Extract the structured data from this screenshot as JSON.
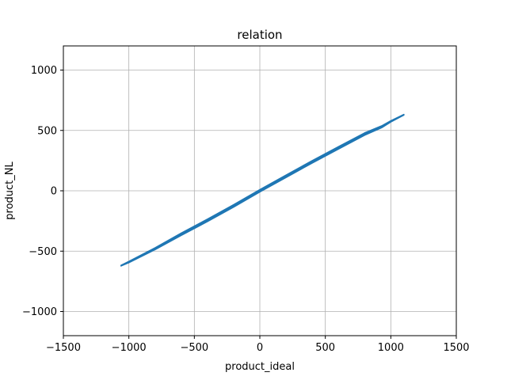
{
  "chart_data": {
    "type": "line",
    "title": "relation",
    "xlabel": "product_ideal",
    "ylabel": "product_NL",
    "xlim": [
      -1500,
      1500
    ],
    "ylim": [
      -1200,
      1200
    ],
    "xticks": [
      -1500,
      -1000,
      -500,
      0,
      500,
      1000,
      1500
    ],
    "yticks": [
      -1000,
      -500,
      0,
      500,
      1000
    ],
    "xtick_labels": [
      "−1500",
      "−1000",
      "−500",
      "0",
      "500",
      "1000",
      "1500"
    ],
    "ytick_labels": [
      "−1000",
      "−500",
      "0",
      "500",
      "1000"
    ],
    "grid": true,
    "series": [
      {
        "color": "#1f77b4",
        "band_halfwidth_y": 10,
        "x": [
          -1060,
          -1000,
          -800,
          -600,
          -400,
          -200,
          0,
          200,
          400,
          600,
          800,
          930,
          1000,
          1100
        ],
        "y": [
          -620,
          -590,
          -480,
          -360,
          -245,
          -125,
          0,
          120,
          240,
          355,
          470,
          530,
          575,
          630
        ]
      }
    ]
  }
}
